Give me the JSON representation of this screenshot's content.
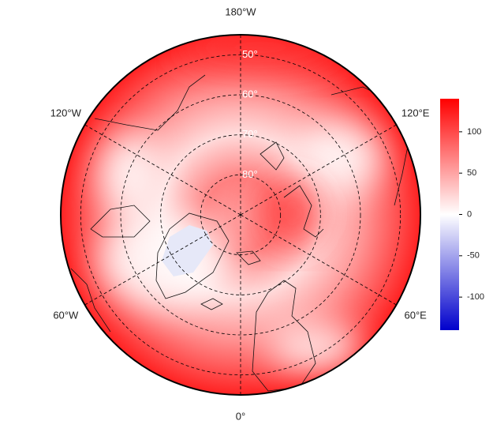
{
  "map": {
    "projection": "north polar azimuthal equidistant",
    "latlim": [
      45,
      90
    ],
    "lon_labels": [
      {
        "value": 180,
        "label": "180°W"
      },
      {
        "value": -120,
        "label": "120°W"
      },
      {
        "value": -60,
        "label": "60°W"
      },
      {
        "value": 0,
        "label": "0°"
      },
      {
        "value": 60,
        "label": "60°E"
      },
      {
        "value": 120,
        "label": "120°E"
      }
    ],
    "lat_labels": [
      {
        "value": 50,
        "label": "50°"
      },
      {
        "value": 60,
        "label": "60°"
      },
      {
        "value": 70,
        "label": "70°"
      },
      {
        "value": 80,
        "label": "80°"
      }
    ]
  },
  "colorbar": {
    "lim": [
      -140,
      140
    ],
    "ticks": [
      100,
      50,
      0,
      -50,
      -100
    ],
    "colors": [
      "#0000cc",
      "#ffffff",
      "#ff0000"
    ]
  }
}
